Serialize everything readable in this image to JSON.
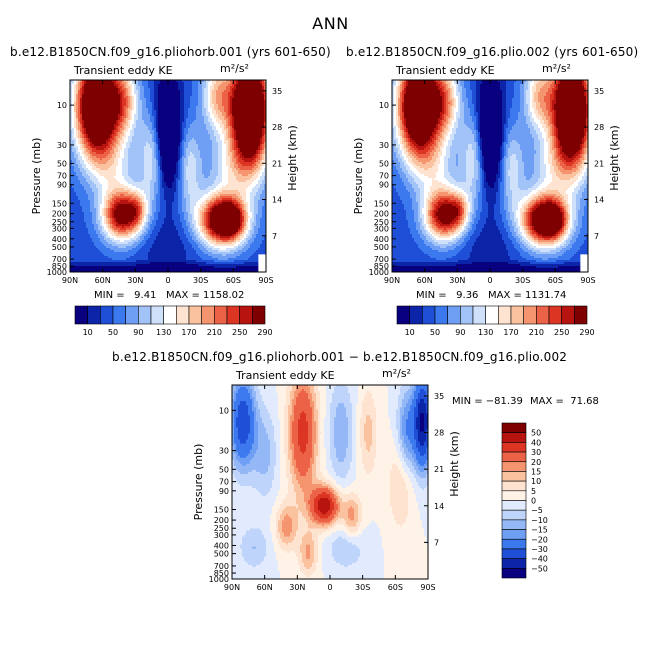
{
  "title": "ANN",
  "colors": {
    "full_scale": [
      "#08007e",
      "#0b24a8",
      "#1f4fd6",
      "#3d79ee",
      "#6f9ff4",
      "#a2c3f8",
      "#cfe0fb",
      "#ffffff",
      "#fde3d0",
      "#fbc2a0",
      "#f59570",
      "#ec6247",
      "#dc3524",
      "#b8140f",
      "#7e0000"
    ],
    "diff_scale": [
      "#08007e",
      "#0b24a8",
      "#1f4fd6",
      "#3d79ee",
      "#6f9ff4",
      "#94b7f6",
      "#bfd4fa",
      "#e1ebfd",
      "#fff2e6",
      "#fde3d0",
      "#fbc2a0",
      "#f59570",
      "#ec6247",
      "#dc3524",
      "#b8140f",
      "#7e0000"
    ]
  },
  "chart_data": [
    {
      "type": "contour",
      "panel_title": "b.e12.B1850CN.f09_g16.pliohorb.001 (yrs 601-650)",
      "variable": "Transient eddy KE",
      "units": "m²/s²",
      "xlabel": "",
      "ylabel": "Pressure (mb)",
      "y2label": "Height (km)",
      "x_ticks": [
        "90N",
        "60N",
        "30N",
        "0",
        "30S",
        "60S",
        "90S"
      ],
      "y_ticks": [
        "10",
        "30",
        "50",
        "70",
        "90",
        "150",
        "200",
        "250",
        "300",
        "400",
        "500",
        "700",
        "850",
        "1000"
      ],
      "y2_ticks": [
        "35",
        "28",
        "21",
        "14",
        "7"
      ],
      "min_text": "MIN =   9.41",
      "max_text": "MAX = 1158.02",
      "colorbar_labels": [
        "10",
        "50",
        "90",
        "130",
        "170",
        "210",
        "250",
        "290"
      ],
      "features": [
        {
          "name": "NH stratospheric max",
          "lat": -65,
          "height_km": 30,
          "value": 300
        },
        {
          "name": "SH stratospheric max",
          "lat": 75,
          "height_km": 30,
          "value": 300
        },
        {
          "name": "NH jet max",
          "lat": -40,
          "height_km": 11,
          "value": 270
        },
        {
          "name": "SH jet max",
          "lat": 50,
          "height_km": 10,
          "value": 300
        },
        {
          "name": "Equatorial min",
          "lat": 2,
          "height_km": 26,
          "value": 10
        }
      ]
    },
    {
      "type": "contour",
      "panel_title": "b.e12.B1850CN.f09_g16.plio.002 (yrs 601-650)",
      "variable": "Transient eddy KE",
      "units": "m²/s²",
      "ylabel": "Pressure (mb)",
      "y2label": "Height (km)",
      "x_ticks": [
        "90N",
        "60N",
        "30N",
        "0",
        "30S",
        "60S",
        "90S"
      ],
      "y_ticks": [
        "10",
        "30",
        "50",
        "70",
        "90",
        "150",
        "200",
        "250",
        "300",
        "400",
        "500",
        "700",
        "850",
        "1000"
      ],
      "y2_ticks": [
        "35",
        "28",
        "21",
        "14",
        "7"
      ],
      "min_text": "MIN =   9.36",
      "max_text": "MAX = 1131.74",
      "colorbar_labels": [
        "10",
        "50",
        "90",
        "130",
        "170",
        "210",
        "250",
        "290"
      ],
      "features": [
        {
          "name": "NH stratospheric max",
          "lat": -65,
          "height_km": 30,
          "value": 300
        },
        {
          "name": "SH stratospheric max",
          "lat": 75,
          "height_km": 30,
          "value": 300
        },
        {
          "name": "NH jet max",
          "lat": -40,
          "height_km": 11,
          "value": 270
        },
        {
          "name": "SH jet max",
          "lat": 50,
          "height_km": 10,
          "value": 300
        },
        {
          "name": "Equatorial min",
          "lat": 2,
          "height_km": 26,
          "value": 10
        }
      ]
    },
    {
      "type": "contour",
      "panel_title": "b.e12.B1850CN.f09_g16.pliohorb.001 − b.e12.B1850CN.f09_g16.plio.002",
      "variable": "Transient eddy KE",
      "units": "m²/s²",
      "ylabel": "Pressure (mb)",
      "y2label": "Height (km)",
      "x_ticks": [
        "90N",
        "60N",
        "30N",
        "0",
        "30S",
        "60S",
        "90S"
      ],
      "y_ticks": [
        "10",
        "30",
        "50",
        "70",
        "90",
        "150",
        "200",
        "250",
        "300",
        "400",
        "500",
        "700",
        "850",
        "1000"
      ],
      "y2_ticks": [
        "35",
        "28",
        "21",
        "14",
        "7"
      ],
      "min_text": "MIN = −81.39",
      "max_text": "MAX =  71.68",
      "colorbar_labels": [
        "50",
        "40",
        "30",
        "20",
        "15",
        "10",
        "5",
        "0",
        "−5",
        "−10",
        "−15",
        "−20",
        "−30",
        "−40",
        "−50"
      ],
      "features": [
        {
          "name": "Tropical positive max",
          "lat": -5,
          "height_km": 14,
          "value": 45
        },
        {
          "name": "Upper tropical positive",
          "lat": -25,
          "height_km": 28,
          "value": 35
        },
        {
          "name": "NH polar negative",
          "lat": -80,
          "height_km": 28,
          "value": -40
        },
        {
          "name": "SH polar negative",
          "lat": 85,
          "height_km": 30,
          "value": -50
        }
      ]
    }
  ]
}
